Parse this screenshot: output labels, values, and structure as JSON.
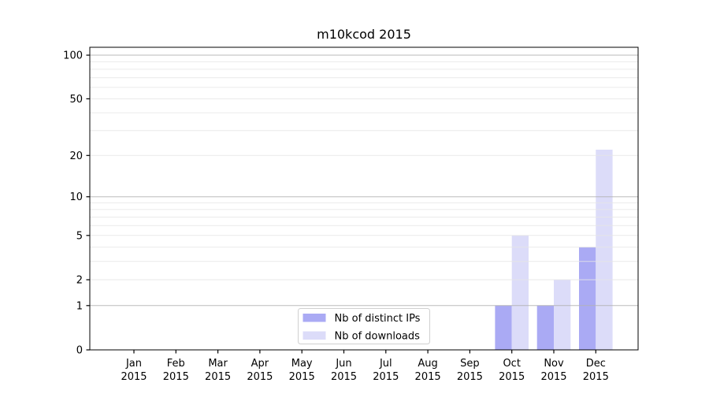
{
  "title": "m10kcod 2015",
  "chart_data": {
    "type": "bar",
    "title": "m10kcod 2015",
    "categories": [
      "Jan 2015",
      "Feb 2015",
      "Mar 2015",
      "Apr 2015",
      "May 2015",
      "Jun 2015",
      "Jul 2015",
      "Aug 2015",
      "Sep 2015",
      "Oct 2015",
      "Nov 2015",
      "Dec 2015"
    ],
    "series": [
      {
        "name": "Nb of distinct IPs",
        "color": "#aaaaf4",
        "values": [
          0,
          0,
          0,
          0,
          0,
          0,
          0,
          0,
          0,
          1,
          1,
          4
        ]
      },
      {
        "name": "Nb of downloads",
        "color": "#dcdcf9",
        "values": [
          0,
          0,
          0,
          0,
          0,
          0,
          0,
          0,
          0,
          5,
          2,
          22
        ]
      }
    ],
    "xlabel": "",
    "ylabel": "",
    "y_ticks": [
      0,
      1,
      2,
      5,
      10,
      20,
      50,
      100
    ],
    "y_major_gridlines": [
      1,
      10,
      100
    ],
    "y_minor_gridlines": [
      2,
      3,
      4,
      5,
      6,
      7,
      8,
      9,
      20,
      30,
      40,
      50,
      60,
      70,
      80,
      90
    ],
    "y_scale": "log1p",
    "ylim": [
      0,
      113
    ],
    "grid": true,
    "legend_position": "lower center",
    "colors": {
      "major_grid": "#b3b3b3",
      "minor_grid": "#e6e6e6",
      "spine": "#000000",
      "legend_border": "#d0d0d0",
      "legend_background": "#ffffff"
    }
  }
}
